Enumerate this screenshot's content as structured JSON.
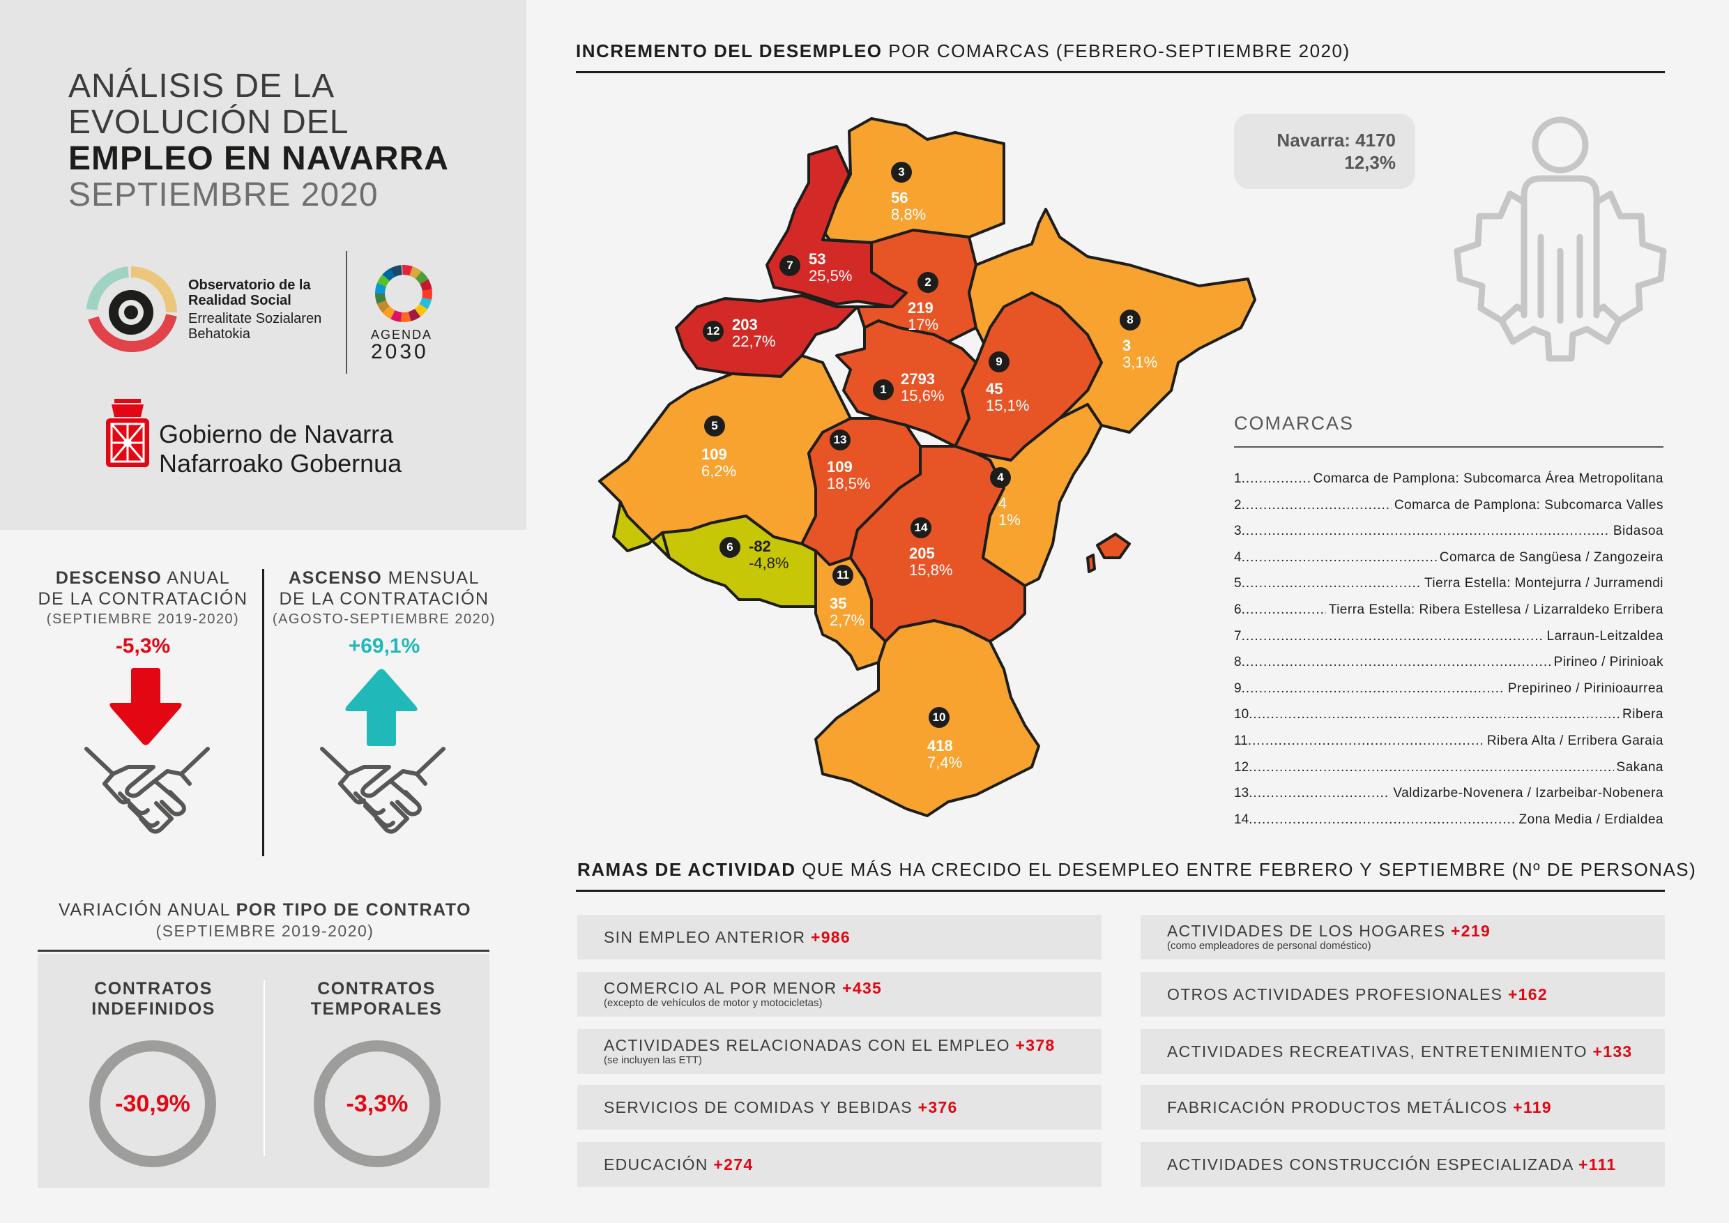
{
  "header": {
    "title_l1": "ANÁLISIS DE LA",
    "title_l2": "EVOLUCIÓN DEL",
    "title_l3": "EMPLEO EN NAVARRA",
    "title_l4": "SEPTIEMBRE 2020"
  },
  "logos": {
    "obs_l1": "Observatorio de la",
    "obs_l2": "Realidad Social",
    "obs_l3": "Errealitate Sozialaren",
    "obs_l4": "Behatokia",
    "agenda_word": "AGENDA",
    "agenda_year": "2030",
    "gob_l1": "Gobierno de Navarra",
    "gob_l2": "Nafarroako Gobernua"
  },
  "contratacion": {
    "descenso_bold": "DESCENSO",
    "descenso_rest": " ANUAL",
    "descenso_l2": "DE LA CONTRATACIÓN",
    "descenso_sub": "(SEPTIEMBRE 2019-2020)",
    "descenso_value": "-5,3%",
    "ascenso_bold": "ASCENSO",
    "ascenso_rest": " MENSUAL",
    "ascenso_l2": "DE LA CONTRATACIÓN",
    "ascenso_sub": "(AGOSTO-SEPTIEMBRE 2020)",
    "ascenso_value": "+69,1%"
  },
  "tipo_contrato": {
    "title_pre": "VARIACIÓN ANUAL ",
    "title_bold": "POR TIPO DE CONTRATO",
    "subtitle": "(SEPTIEMBRE 2019-2020)",
    "indef_l1": "CONTRATOS",
    "indef_l2": "INDEFINIDOS",
    "indef_value": "-30,9%",
    "temp_l1": "CONTRATOS",
    "temp_l2": "TEMPORALES",
    "temp_value": "-3,3%"
  },
  "map": {
    "title_bold": "INCREMENTO DEL DESEMPLEO",
    "title_rest": " POR COMARCAS (FEBRERO-SEPTIEMBRE 2020)",
    "navarra_l1": "Navarra: 4170",
    "navarra_l2": "12,3%",
    "colors": {
      "dark_red": "#d42a27",
      "red_orange": "#e75425",
      "orange": "#f8a230",
      "yellow_green": "#c8c707"
    },
    "regions": [
      {
        "n": "1",
        "value": "2793",
        "pct": "15,6%"
      },
      {
        "n": "2",
        "value": "219",
        "pct": "17%"
      },
      {
        "n": "3",
        "value": "56",
        "pct": "8,8%"
      },
      {
        "n": "4",
        "value": "4",
        "pct": "1%"
      },
      {
        "n": "5",
        "value": "109",
        "pct": "6,2%"
      },
      {
        "n": "6",
        "value": "-82",
        "pct": "-4,8%"
      },
      {
        "n": "7",
        "value": "53",
        "pct": "25,5%"
      },
      {
        "n": "8",
        "value": "3",
        "pct": "3,1%"
      },
      {
        "n": "9",
        "value": "45",
        "pct": "15,1%"
      },
      {
        "n": "10",
        "value": "418",
        "pct": "7,4%"
      },
      {
        "n": "11",
        "value": "35",
        "pct": "2,7%"
      },
      {
        "n": "12",
        "value": "203",
        "pct": "22,7%"
      },
      {
        "n": "13",
        "value": "109",
        "pct": "18,5%"
      },
      {
        "n": "14",
        "value": "205",
        "pct": "15,8%"
      }
    ]
  },
  "comarcas": {
    "title": "COMARCAS",
    "items": [
      {
        "n": "1",
        "name": "Comarca de Pamplona: Subcomarca Área Metropolitana"
      },
      {
        "n": "2",
        "name": "Comarca de Pamplona: Subcomarca Valles"
      },
      {
        "n": "3",
        "name": "Bidasoa"
      },
      {
        "n": "4",
        "name": "Comarca de Sangüesa / Zangozeira"
      },
      {
        "n": "5",
        "name": "Tierra Estella: Montejurra / Jurramendi"
      },
      {
        "n": "6",
        "name": "Tierra Estella: Ribera Estellesa / Lizarraldeko Erribera"
      },
      {
        "n": "7",
        "name": "Larraun-Leitzaldea"
      },
      {
        "n": "8",
        "name": "Pirineo / Pirinioak"
      },
      {
        "n": "9",
        "name": "Prepirineo / Pirinioaurrea"
      },
      {
        "n": "10",
        "name": "Ribera"
      },
      {
        "n": "11",
        "name": "Ribera Alta / Erribera Garaia"
      },
      {
        "n": "12",
        "name": "Sakana"
      },
      {
        "n": "13",
        "name": "Valdizarbe-Novenera / Izarbeibar-Nobenera"
      },
      {
        "n": "14",
        "name": "Zona Media / Erdialdea"
      }
    ]
  },
  "ramas": {
    "title_bold": "RAMAS DE ACTIVIDAD",
    "title_rest": " QUE MÁS HA CRECIDO EL DESEMPLEO ENTRE FEBRERO Y SEPTIEMBRE (Nº DE PERSONAS)",
    "left": [
      {
        "label": "SIN EMPLEO ANTERIOR",
        "value": "+986",
        "sub": ""
      },
      {
        "label": "COMERCIO AL POR MENOR",
        "value": "+435",
        "sub": "(excepto de vehículos de motor y motocicletas)"
      },
      {
        "label": "ACTIVIDADES RELACIONADAS CON EL EMPLEO",
        "value": "+378",
        "sub": "(se incluyen las ETT)"
      },
      {
        "label": "SERVICIOS DE COMIDAS Y BEBIDAS",
        "value": "+376",
        "sub": ""
      },
      {
        "label": "EDUCACIÓN",
        "value": "+274",
        "sub": ""
      }
    ],
    "right": [
      {
        "label": "ACTIVIDADES DE LOS HOGARES",
        "value": "+219",
        "sub": "(como empleadores de personal doméstico)"
      },
      {
        "label": "OTROS ACTIVIDADES PROFESIONALES",
        "value": "+162",
        "sub": ""
      },
      {
        "label": "ACTIVIDADES RECREATIVAS, ENTRETENIMIENTO",
        "value": "+133",
        "sub": ""
      },
      {
        "label": "FABRICACIÓN PRODUCTOS METÁLICOS",
        "value": "+119",
        "sub": ""
      },
      {
        "label": "ACTIVIDADES CONSTRUCCIÓN ESPECIALIZADA",
        "value": "+111",
        "sub": ""
      }
    ]
  }
}
